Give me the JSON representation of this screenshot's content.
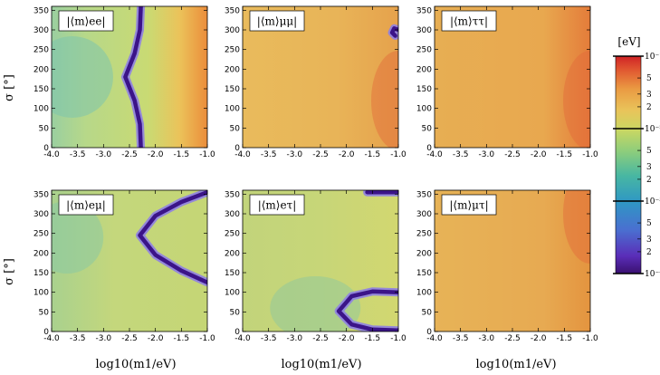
{
  "chart_data": {
    "type": "heatmap",
    "description_units": {
      "x": "log10(m1/eV)",
      "y": "sigma (degrees)",
      "color": "eV (log scale)"
    },
    "x_ticks": [
      -4.0,
      -3.5,
      -3.0,
      -2.5,
      -2.0,
      -1.5,
      -1.0
    ],
    "x_tick_labels": [
      "-4.0",
      "-3.5",
      "-3.0",
      "-2.5",
      "-2.0",
      "-1.5",
      "-1.0"
    ],
    "y_ticks": [
      0,
      50,
      100,
      150,
      200,
      250,
      300,
      350
    ],
    "y_tick_labels": [
      "0",
      "50",
      "100",
      "150",
      "200",
      "250",
      "300",
      "350"
    ],
    "xlim": [
      -4.0,
      -1.0
    ],
    "ylim": [
      0,
      360
    ],
    "xlabel": "log10(m1/eV)",
    "ylabel": "σ [°]",
    "colorbar": {
      "unit_label": "[eV]",
      "range_log10": [
        -4,
        -1
      ],
      "major_labels": [
        "10⁻¹",
        "10⁻²",
        "10⁻³",
        "10⁻⁴"
      ],
      "minor_labels": [
        "5",
        "3",
        "2",
        "5",
        "3",
        "2",
        "5",
        "3",
        "2"
      ]
    },
    "panels": [
      {
        "name": "|⟨m⟩ee|",
        "row": 0,
        "col": 0
      },
      {
        "name": "|⟨m⟩μμ|",
        "row": 0,
        "col": 1
      },
      {
        "name": "|⟨m⟩ττ|",
        "row": 0,
        "col": 2
      },
      {
        "name": "|⟨m⟩eμ|",
        "row": 1,
        "col": 0
      },
      {
        "name": "|⟨m⟩eτ|",
        "row": 1,
        "col": 1
      },
      {
        "name": "|⟨m⟩μτ|",
        "row": 1,
        "col": 2
      }
    ]
  }
}
